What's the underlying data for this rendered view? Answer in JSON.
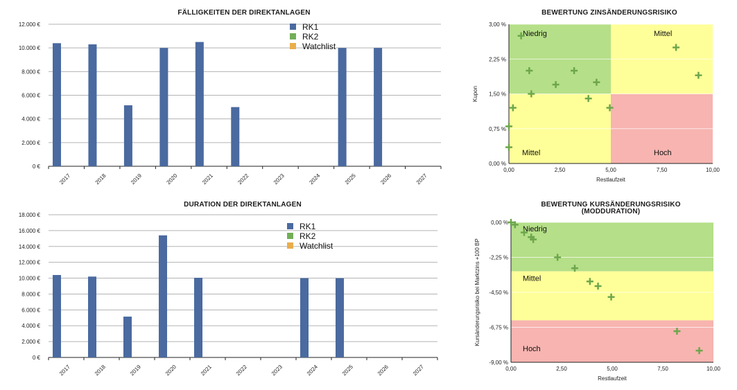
{
  "colors": {
    "rk1": "#4a6aa0",
    "rk2": "#72ae57",
    "watchlist": "#e9ad4c",
    "zone_green": "#b5df88",
    "zone_yellow": "#ffff99",
    "zone_red": "#f7b4b0",
    "marker": "#6da64d"
  },
  "chart_data": [
    {
      "type": "bar",
      "title": "FÄLLIGKEITEN DER DIREKTANLAGEN",
      "categories": [
        "2017",
        "2018",
        "2019",
        "2020",
        "2021",
        "2022",
        "2023",
        "2024",
        "2025",
        "2026",
        "2027"
      ],
      "series": [
        {
          "name": "RK1",
          "values": [
            10400,
            10300,
            5150,
            10000,
            10500,
            5000,
            0,
            0,
            10000,
            10000,
            0
          ]
        },
        {
          "name": "RK2",
          "values": [
            0,
            0,
            0,
            0,
            0,
            0,
            0,
            0,
            0,
            0,
            0
          ]
        },
        {
          "name": "Watchlist",
          "values": [
            0,
            0,
            0,
            0,
            0,
            0,
            0,
            0,
            0,
            0,
            0
          ]
        }
      ],
      "ylim": [
        0,
        12000
      ],
      "yticks": [
        0,
        2000,
        4000,
        6000,
        8000,
        10000,
        12000
      ],
      "ytick_labels": [
        "0 €",
        "2.000 €",
        "4.000 €",
        "6.000 €",
        "8.000 €",
        "10.000 €",
        "12.000 €"
      ],
      "xlabel": "",
      "ylabel": "",
      "legend": [
        "RK1",
        "RK2",
        "Watchlist"
      ]
    },
    {
      "type": "scatter",
      "title": "BEWERTUNG ZINSÄNDERUNGSRISIKO",
      "xlabel": "Restlaufzeit",
      "ylabel": "Kupon",
      "xlim": [
        0,
        10
      ],
      "ylim": [
        0,
        3
      ],
      "xticks": [
        0,
        2.5,
        5,
        7.5,
        10
      ],
      "xtick_labels": [
        "0,00",
        "2,50",
        "5,00",
        "7,50",
        "10,00"
      ],
      "yticks": [
        0,
        0.75,
        1.5,
        2.25,
        3
      ],
      "ytick_labels": [
        "0,00 %",
        "0,75 %",
        "1,50 %",
        "2,25 %",
        "3,00 %"
      ],
      "zone_labels": [
        "Niedrig",
        "Mittel",
        "Mittel",
        "Hoch"
      ],
      "points": [
        {
          "x": 0.6,
          "y": 2.75
        },
        {
          "x": 1.0,
          "y": 2.0
        },
        {
          "x": 1.1,
          "y": 1.5
        },
        {
          "x": 0.2,
          "y": 1.2
        },
        {
          "x": 0.0,
          "y": 0.8
        },
        {
          "x": 0.0,
          "y": 0.35
        },
        {
          "x": 2.3,
          "y": 1.7
        },
        {
          "x": 3.2,
          "y": 2.0
        },
        {
          "x": 3.9,
          "y": 1.4
        },
        {
          "x": 4.3,
          "y": 1.75
        },
        {
          "x": 4.95,
          "y": 1.2
        },
        {
          "x": 8.2,
          "y": 2.5
        },
        {
          "x": 9.3,
          "y": 1.9
        }
      ]
    },
    {
      "type": "bar",
      "title": "DURATION DER DIREKTANLAGEN",
      "categories": [
        "2017",
        "2018",
        "2019",
        "2020",
        "2021",
        "2022",
        "2023",
        "2024",
        "2025",
        "2026",
        "2027"
      ],
      "series": [
        {
          "name": "RK1",
          "values": [
            10400,
            10200,
            5150,
            15400,
            10050,
            0,
            0,
            10000,
            10000,
            0,
            0
          ]
        },
        {
          "name": "RK2",
          "values": [
            0,
            0,
            0,
            0,
            0,
            0,
            0,
            0,
            0,
            0,
            0
          ]
        },
        {
          "name": "Watchlist",
          "values": [
            0,
            0,
            0,
            0,
            0,
            0,
            0,
            0,
            0,
            0,
            0
          ]
        }
      ],
      "ylim": [
        0,
        18000
      ],
      "yticks": [
        0,
        2000,
        4000,
        6000,
        8000,
        10000,
        12000,
        14000,
        16000,
        18000
      ],
      "ytick_labels": [
        "0 €",
        "2.000 €",
        "4.000 €",
        "6.000 €",
        "8.000 €",
        "10.000 €",
        "12.000 €",
        "14.000 €",
        "16.000 €",
        "18.000 €"
      ],
      "xlabel": "",
      "ylabel": "",
      "legend": [
        "RK1",
        "RK2",
        "Watchlist"
      ]
    },
    {
      "type": "scatter",
      "title": "BEWERTUNG KURSÄNDERUNGSRISIKO",
      "subtitle": "(MODDURATION)",
      "xlabel": "Restlaufzeit",
      "ylabel": "Kursänderungsrisiko bei Marktzins +100 BP",
      "xlim": [
        0,
        10
      ],
      "ylim": [
        -9,
        0
      ],
      "xticks": [
        0,
        2.5,
        5,
        7.5,
        10
      ],
      "xtick_labels": [
        "0,00",
        "2,50",
        "5,00",
        "7,50",
        "10,00"
      ],
      "yticks": [
        0,
        -2.25,
        -4.5,
        -6.75,
        -9
      ],
      "ytick_labels": [
        "0,00 %",
        "-2,25 %",
        "-4,50 %",
        "-6,75 %",
        "-9,00 %"
      ],
      "zone_labels": [
        "Niedrig",
        "Mittel",
        "Hoch"
      ],
      "points": [
        {
          "x": 0.0,
          "y": 0.0
        },
        {
          "x": 0.2,
          "y": -0.15
        },
        {
          "x": 0.65,
          "y": -0.65
        },
        {
          "x": 1.0,
          "y": -0.95
        },
        {
          "x": 1.1,
          "y": -1.1
        },
        {
          "x": 2.3,
          "y": -2.25
        },
        {
          "x": 3.15,
          "y": -2.95
        },
        {
          "x": 3.9,
          "y": -3.8
        },
        {
          "x": 4.3,
          "y": -4.1
        },
        {
          "x": 4.95,
          "y": -4.8
        },
        {
          "x": 8.2,
          "y": -7.0
        },
        {
          "x": 9.3,
          "y": -8.25
        }
      ]
    }
  ]
}
